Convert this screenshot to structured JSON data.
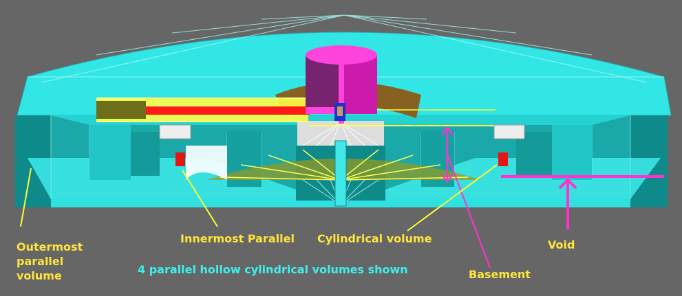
{
  "colors": {
    "background": "#666666",
    "geometry_light": "#22e4e4",
    "geometry_dark": "#0f8c8c",
    "yellow": "#ffff33",
    "magenta": "#ff33cc",
    "red": "#ff1a1a",
    "label_yellow": "#ffe53d",
    "label_cyan": "#3ff0f0"
  },
  "labels": {
    "outermost_line1": "Outermost",
    "outermost_line2": "parallel",
    "outermost_line3": "volume",
    "innermost": "Innermost Parallel",
    "cylindrical": "Cylindrical volume",
    "void": "Void",
    "note": "4 parallel hollow cylindrical volumes shown",
    "basement": "Basement"
  }
}
